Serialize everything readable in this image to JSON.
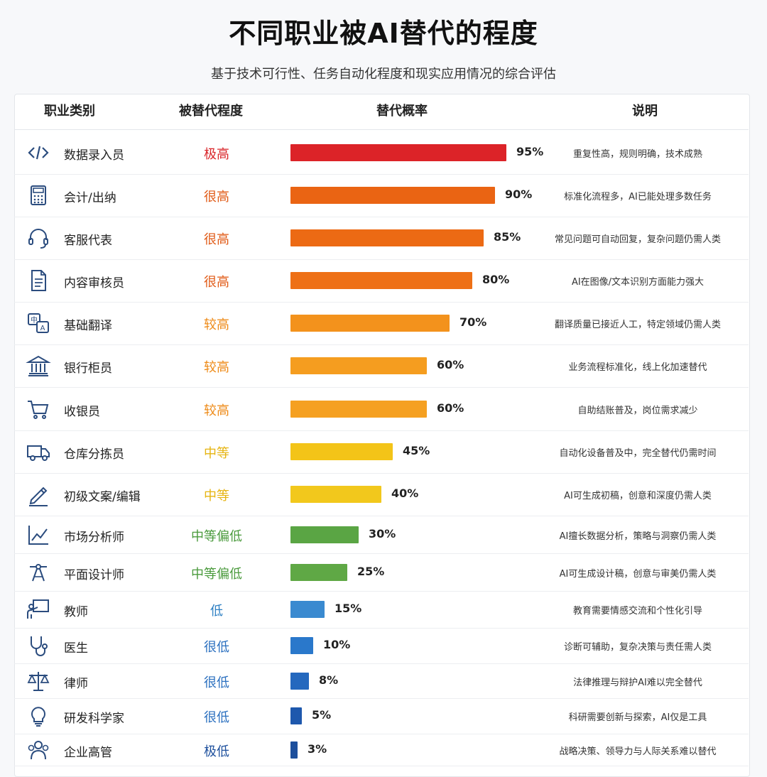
{
  "title": "不同职业被AI替代的程度",
  "subtitle": "基于技术可行性、任务自动化程度和现实应用情况的综合评估",
  "table": {
    "headers": [
      "职业类别",
      "被替代程度",
      "替代概率",
      "说明"
    ]
  },
  "colors": {
    "极高": "#d9262a",
    "很高": "#ea6413",
    "较高": "#f39a1e",
    "中等": "#f1c517",
    "中等偏低": "#5aa544",
    "低": "#3787c9",
    "很低": "#2a6fbf",
    "极低": "#1d4f9c"
  },
  "chart_data": {
    "type": "bar",
    "categories": [
      "数据录入员",
      "会计/出纳",
      "客服代表",
      "内容审核员",
      "基础翻译",
      "银行柜员",
      "收银员",
      "仓库分拣员",
      "初级文案/编辑",
      "市场分析师",
      "平面设计师",
      "教师",
      "医生",
      "律师",
      "研发科学家",
      "企业高管"
    ],
    "values": [
      95,
      90,
      85,
      80,
      70,
      60,
      60,
      45,
      40,
      30,
      25,
      15,
      10,
      8,
      5,
      3
    ],
    "unit": "%",
    "xlim": [
      0,
      100
    ]
  },
  "rows": [
    {
      "icon": "code-icon",
      "job": "数据录入员",
      "level": "极高",
      "level_color": "#d9262a",
      "value": 95,
      "pct": "95%",
      "bar_color": "#dc2328",
      "desc": "重复性高，规则明确，技术成熟"
    },
    {
      "icon": "calculator-icon",
      "job": "会计/出纳",
      "level": "很高",
      "level_color": "#e05a16",
      "value": 90,
      "pct": "90%",
      "bar_color": "#ea6413",
      "desc": "标准化流程多，AI已能处理多数任务"
    },
    {
      "icon": "headset-icon",
      "job": "客服代表",
      "level": "很高",
      "level_color": "#e05a16",
      "value": 85,
      "pct": "85%",
      "bar_color": "#ec6a14",
      "desc": "常见问题可自动回复，复杂问题仍需人类"
    },
    {
      "icon": "document-icon",
      "job": "内容审核员",
      "level": "很高",
      "level_color": "#e05a16",
      "value": 80,
      "pct": "80%",
      "bar_color": "#ee7016",
      "desc": "AI在图像/文本识别方面能力强大"
    },
    {
      "icon": "translate-icon",
      "job": "基础翻译",
      "level": "较高",
      "level_color": "#ee8a17",
      "value": 70,
      "pct": "70%",
      "bar_color": "#f3921c",
      "desc": "翻译质量已接近人工，特定领域仍需人类"
    },
    {
      "icon": "bank-icon",
      "job": "银行柜员",
      "level": "较高",
      "level_color": "#ee8a17",
      "value": 60,
      "pct": "60%",
      "bar_color": "#f59d1f",
      "desc": "业务流程标准化，线上化加速替代"
    },
    {
      "icon": "cart-icon",
      "job": "收银员",
      "level": "较高",
      "level_color": "#ee8a17",
      "value": 60,
      "pct": "60%",
      "bar_color": "#f5a021",
      "desc": "自助结账普及，岗位需求减少"
    },
    {
      "icon": "truck-icon",
      "job": "仓库分拣员",
      "level": "中等",
      "level_color": "#e6b410",
      "value": 45,
      "pct": "45%",
      "bar_color": "#f3c418",
      "desc": "自动化设备普及中，完全替代仍需时间"
    },
    {
      "icon": "pen-icon",
      "job": "初级文案/编辑",
      "level": "中等",
      "level_color": "#e6b410",
      "value": 40,
      "pct": "40%",
      "bar_color": "#f2c81c",
      "desc": "AI可生成初稿，创意和深度仍需人类"
    },
    {
      "icon": "chart-line-icon",
      "job": "市场分析师",
      "level": "中等偏低",
      "level_color": "#4a9a3c",
      "value": 30,
      "pct": "30%",
      "bar_color": "#5aa544",
      "desc": "AI擅长数据分析，策略与洞察仍需人类"
    },
    {
      "icon": "design-icon",
      "job": "平面设计师",
      "level": "中等偏低",
      "level_color": "#4a9a3c",
      "value": 25,
      "pct": "25%",
      "bar_color": "#5fa845",
      "desc": "AI可生成设计稿，创意与审美仍需人类"
    },
    {
      "icon": "teacher-icon",
      "job": "教师",
      "level": "低",
      "level_color": "#2d7fc3",
      "value": 15,
      "pct": "15%",
      "bar_color": "#3a8ad0",
      "desc": "教育需要情感交流和个性化引导"
    },
    {
      "icon": "stethoscope-icon",
      "job": "医生",
      "level": "很低",
      "level_color": "#2a6fbf",
      "value": 10,
      "pct": "10%",
      "bar_color": "#2a78cb",
      "desc": "诊断可辅助，复杂决策与责任需人类"
    },
    {
      "icon": "scale-icon",
      "job": "律师",
      "level": "很低",
      "level_color": "#2a6fbf",
      "value": 8,
      "pct": "8%",
      "bar_color": "#2468be",
      "desc": "法律推理与辩护AI难以完全替代"
    },
    {
      "icon": "lightbulb-icon",
      "job": "研发科学家",
      "level": "很低",
      "level_color": "#2a6fbf",
      "value": 5,
      "pct": "5%",
      "bar_color": "#1e58ad",
      "desc": "科研需要创新与探索，AI仅是工具"
    },
    {
      "icon": "people-icon",
      "job": "企业高管",
      "level": "极低",
      "level_color": "#1d4f9c",
      "value": 3,
      "pct": "3%",
      "bar_color": "#1d4f9c",
      "desc": "战略决策、领导力与人际关系难以替代"
    }
  ]
}
